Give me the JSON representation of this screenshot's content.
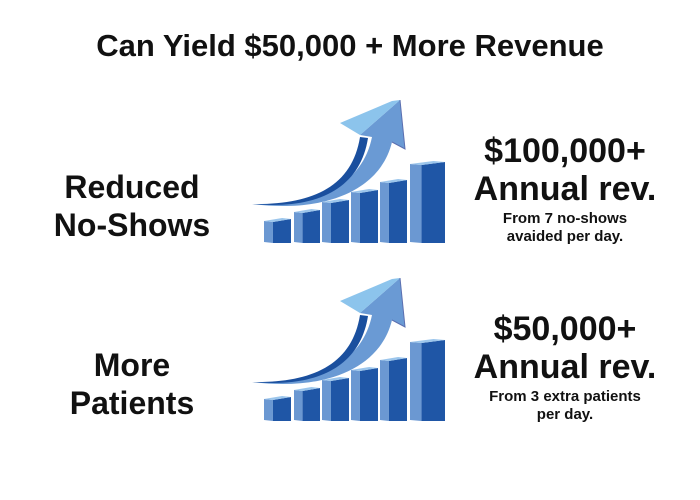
{
  "title": "Can Yield $50,000 + More Revenue",
  "rows": [
    {
      "label_line1": "Reduced",
      "label_line2": "No-Shows",
      "amount": "$100,000+",
      "period": "Annual rev.",
      "note_line1": "From 7 no-shows",
      "note_line2": "avaided per day.",
      "icon": "growth-bar-chart-arrow"
    },
    {
      "label_line1": "More",
      "label_line2": "Patients",
      "amount": "$50,000+",
      "period": "Annual rev.",
      "note_line1": "From 3 extra patients",
      "note_line2": "per day.",
      "icon": "growth-bar-chart-arrow"
    }
  ],
  "colors": {
    "bar_front": "#1f56a6",
    "bar_side": "#6b98d2",
    "bar_top": "#9cc6ec",
    "arrow_dark": "#1a4f9e",
    "arrow_light": "#6a9ad4",
    "arrow_highlight": "#8cc4ec"
  }
}
